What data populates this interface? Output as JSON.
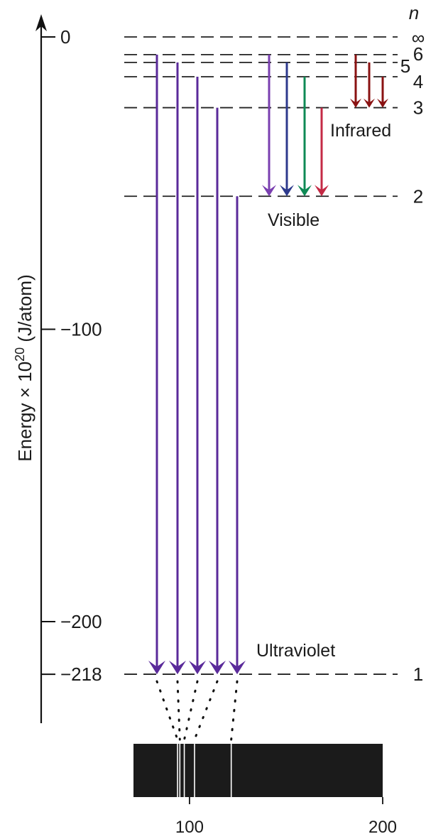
{
  "axis": {
    "title_main": "Energy × 10",
    "title_exp": "20",
    "title_unit": " (J/atom)",
    "ticks": [
      {
        "label": "0",
        "value": 0
      },
      {
        "label": "−100",
        "value": -100
      },
      {
        "label": "−200",
        "value": -200
      },
      {
        "label": "−218",
        "value": -218
      }
    ]
  },
  "levels": {
    "header": "n",
    "items": [
      {
        "n_label": "∞",
        "energy": 0
      },
      {
        "n_label": "6",
        "energy": -6.05
      },
      {
        "n_label": "5",
        "energy": -8.72
      },
      {
        "n_label": "4",
        "energy": -13.6
      },
      {
        "n_label": "3",
        "energy": -24.2
      },
      {
        "n_label": "2",
        "energy": -54.5
      },
      {
        "n_label": "1",
        "energy": -218
      }
    ]
  },
  "series": [
    {
      "label": "Ultraviolet",
      "final_n": 1,
      "color": "#5a2a9a",
      "transitions_from_n": [
        6,
        5,
        4,
        3,
        2
      ]
    },
    {
      "label": "Visible",
      "final_n": 2,
      "transitions": [
        {
          "from_n": 6,
          "color": "#7a3fb0"
        },
        {
          "from_n": 5,
          "color": "#2d3a8c"
        },
        {
          "from_n": 4,
          "color": "#0f8a55"
        },
        {
          "from_n": 3,
          "color": "#c42a45"
        }
      ]
    },
    {
      "label": "Infrared",
      "final_n": 3,
      "color": "#8a1212",
      "transitions_from_n": [
        6,
        5,
        4
      ]
    }
  ],
  "spectrum": {
    "tick_labels": [
      "100",
      "200"
    ],
    "lines": [
      93.8,
      95.0,
      97.3,
      102.6,
      121.6
    ],
    "background": "#1b1b1b",
    "line_color": "#ffffff"
  }
}
